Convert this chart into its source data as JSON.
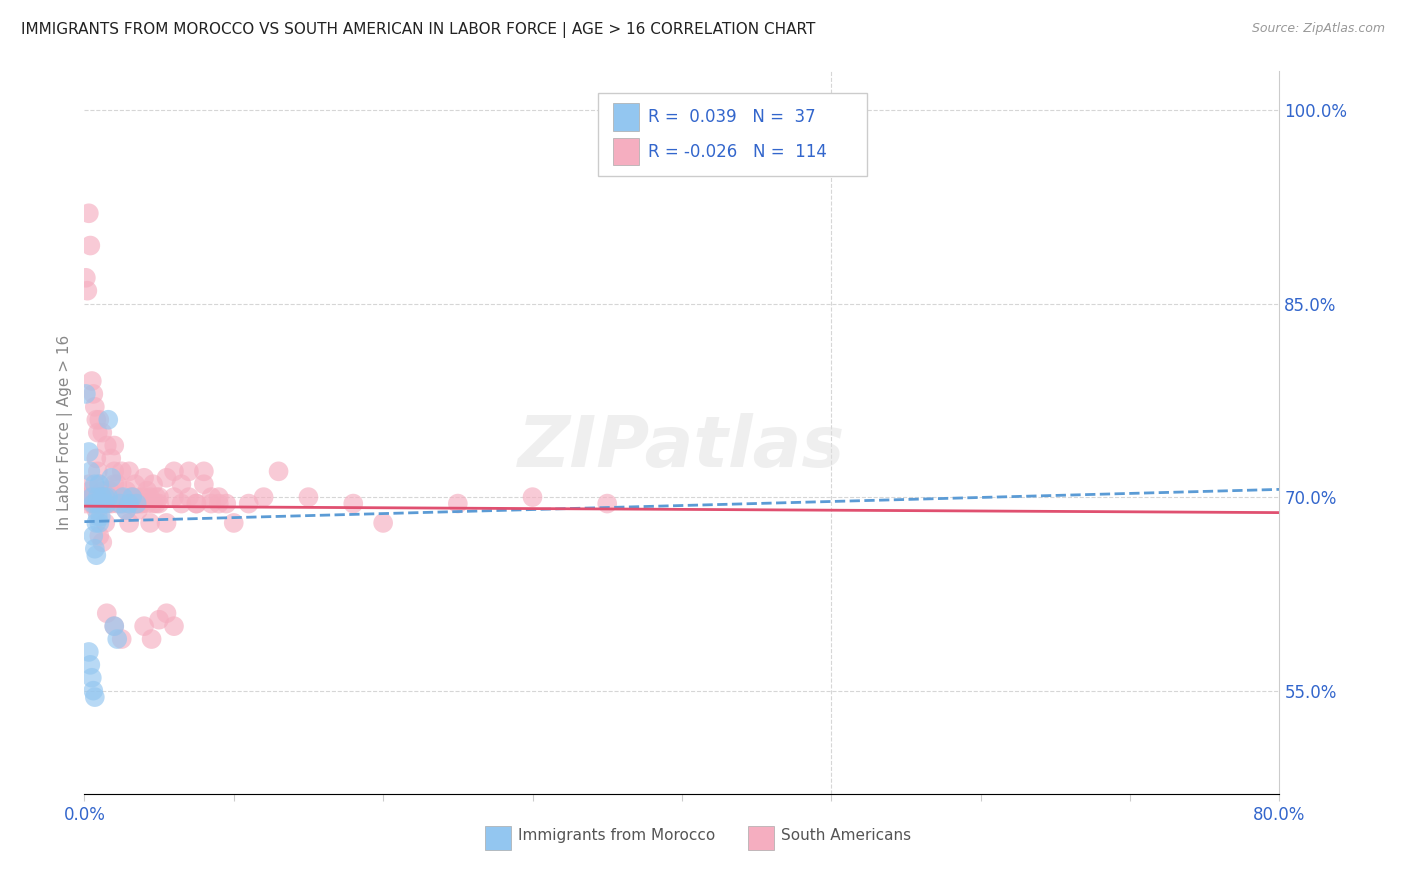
{
  "title": "IMMIGRANTS FROM MOROCCO VS SOUTH AMERICAN IN LABOR FORCE | AGE > 16 CORRELATION CHART",
  "source": "Source: ZipAtlas.com",
  "ylabel": "In Labor Force | Age > 16",
  "xlim": [
    0.0,
    0.8
  ],
  "ylim": [
    0.47,
    1.03
  ],
  "xticks": [
    0.0,
    0.1,
    0.2,
    0.3,
    0.4,
    0.5,
    0.6,
    0.7,
    0.8
  ],
  "xticklabels": [
    "0.0%",
    "",
    "",
    "",
    "",
    "",
    "",
    "",
    "80.0%"
  ],
  "yticks_right": [
    0.55,
    0.7,
    0.85,
    1.0
  ],
  "ytick_labels_right": [
    "55.0%",
    "70.0%",
    "85.0%",
    "100.0%"
  ],
  "background_color": "#ffffff",
  "grid_color": "#cccccc",
  "blue_color": "#93c6f0",
  "pink_color": "#f5aec0",
  "trend_blue_color": "#5b9bd5",
  "trend_pink_color": "#e05070",
  "legend_text_color": "#3366cc",
  "axis_label_color": "#3366cc",
  "ylabel_color": "#888888",
  "r_morocco": 0.039,
  "n_morocco": 37,
  "r_south": -0.026,
  "n_south": 114,
  "watermark": "ZIPatlas",
  "trend_blue_y0": 0.681,
  "trend_blue_y1": 0.706,
  "trend_pink_y0": 0.693,
  "trend_pink_y1": 0.688,
  "morocco_x": [
    0.001,
    0.003,
    0.004,
    0.005,
    0.006,
    0.007,
    0.008,
    0.009,
    0.01,
    0.011,
    0.012,
    0.013,
    0.014,
    0.015,
    0.016,
    0.018,
    0.02,
    0.022,
    0.024,
    0.026,
    0.028,
    0.03,
    0.032,
    0.035,
    0.008,
    0.009,
    0.01,
    0.011,
    0.006,
    0.007,
    0.008,
    0.003,
    0.004,
    0.005,
    0.006,
    0.007,
    0.016
  ],
  "morocco_y": [
    0.78,
    0.735,
    0.72,
    0.7,
    0.695,
    0.71,
    0.695,
    0.7,
    0.71,
    0.695,
    0.7,
    0.695,
    0.7,
    0.695,
    0.7,
    0.715,
    0.6,
    0.59,
    0.695,
    0.7,
    0.69,
    0.695,
    0.7,
    0.695,
    0.68,
    0.685,
    0.68,
    0.685,
    0.67,
    0.66,
    0.655,
    0.58,
    0.57,
    0.56,
    0.55,
    0.545,
    0.76
  ],
  "south_x": [
    0.001,
    0.002,
    0.003,
    0.004,
    0.005,
    0.006,
    0.007,
    0.008,
    0.009,
    0.01,
    0.011,
    0.012,
    0.013,
    0.014,
    0.015,
    0.016,
    0.017,
    0.018,
    0.019,
    0.02,
    0.022,
    0.024,
    0.026,
    0.028,
    0.03,
    0.032,
    0.034,
    0.036,
    0.038,
    0.04,
    0.042,
    0.044,
    0.046,
    0.048,
    0.05,
    0.055,
    0.06,
    0.065,
    0.07,
    0.075,
    0.08,
    0.085,
    0.09,
    0.01,
    0.012,
    0.015,
    0.018,
    0.02,
    0.025,
    0.03,
    0.035,
    0.04,
    0.045,
    0.05,
    0.055,
    0.06,
    0.008,
    0.009,
    0.01,
    0.012,
    0.014,
    0.016,
    0.018,
    0.02,
    0.022,
    0.024,
    0.026,
    0.028,
    0.03,
    0.032,
    0.034,
    0.036,
    0.038,
    0.04,
    0.042,
    0.044,
    0.046,
    0.048,
    0.05,
    0.055,
    0.06,
    0.065,
    0.07,
    0.075,
    0.08,
    0.085,
    0.09,
    0.095,
    0.1,
    0.11,
    0.12,
    0.13,
    0.15,
    0.18,
    0.2,
    0.25,
    0.3,
    0.35,
    0.001,
    0.002,
    0.003,
    0.004,
    0.005,
    0.006,
    0.007,
    0.008,
    0.009,
    0.01,
    0.012,
    0.015,
    0.02,
    0.025
  ],
  "south_y": [
    0.695,
    0.7,
    0.71,
    0.705,
    0.695,
    0.7,
    0.695,
    0.69,
    0.7,
    0.695,
    0.7,
    0.705,
    0.695,
    0.7,
    0.695,
    0.7,
    0.705,
    0.695,
    0.7,
    0.72,
    0.71,
    0.7,
    0.695,
    0.705,
    0.72,
    0.7,
    0.71,
    0.695,
    0.7,
    0.715,
    0.705,
    0.7,
    0.71,
    0.695,
    0.7,
    0.715,
    0.72,
    0.71,
    0.72,
    0.695,
    0.71,
    0.7,
    0.695,
    0.76,
    0.75,
    0.74,
    0.73,
    0.74,
    0.72,
    0.68,
    0.695,
    0.6,
    0.59,
    0.605,
    0.61,
    0.6,
    0.73,
    0.72,
    0.71,
    0.7,
    0.68,
    0.695,
    0.7,
    0.71,
    0.695,
    0.7,
    0.695,
    0.69,
    0.695,
    0.7,
    0.695,
    0.69,
    0.695,
    0.7,
    0.695,
    0.68,
    0.695,
    0.7,
    0.695,
    0.68,
    0.7,
    0.695,
    0.7,
    0.695,
    0.72,
    0.695,
    0.7,
    0.695,
    0.68,
    0.695,
    0.7,
    0.72,
    0.7,
    0.695,
    0.68,
    0.695,
    0.7,
    0.695,
    0.87,
    0.86,
    0.92,
    0.895,
    0.79,
    0.78,
    0.77,
    0.76,
    0.75,
    0.67,
    0.665,
    0.61,
    0.6,
    0.59
  ]
}
